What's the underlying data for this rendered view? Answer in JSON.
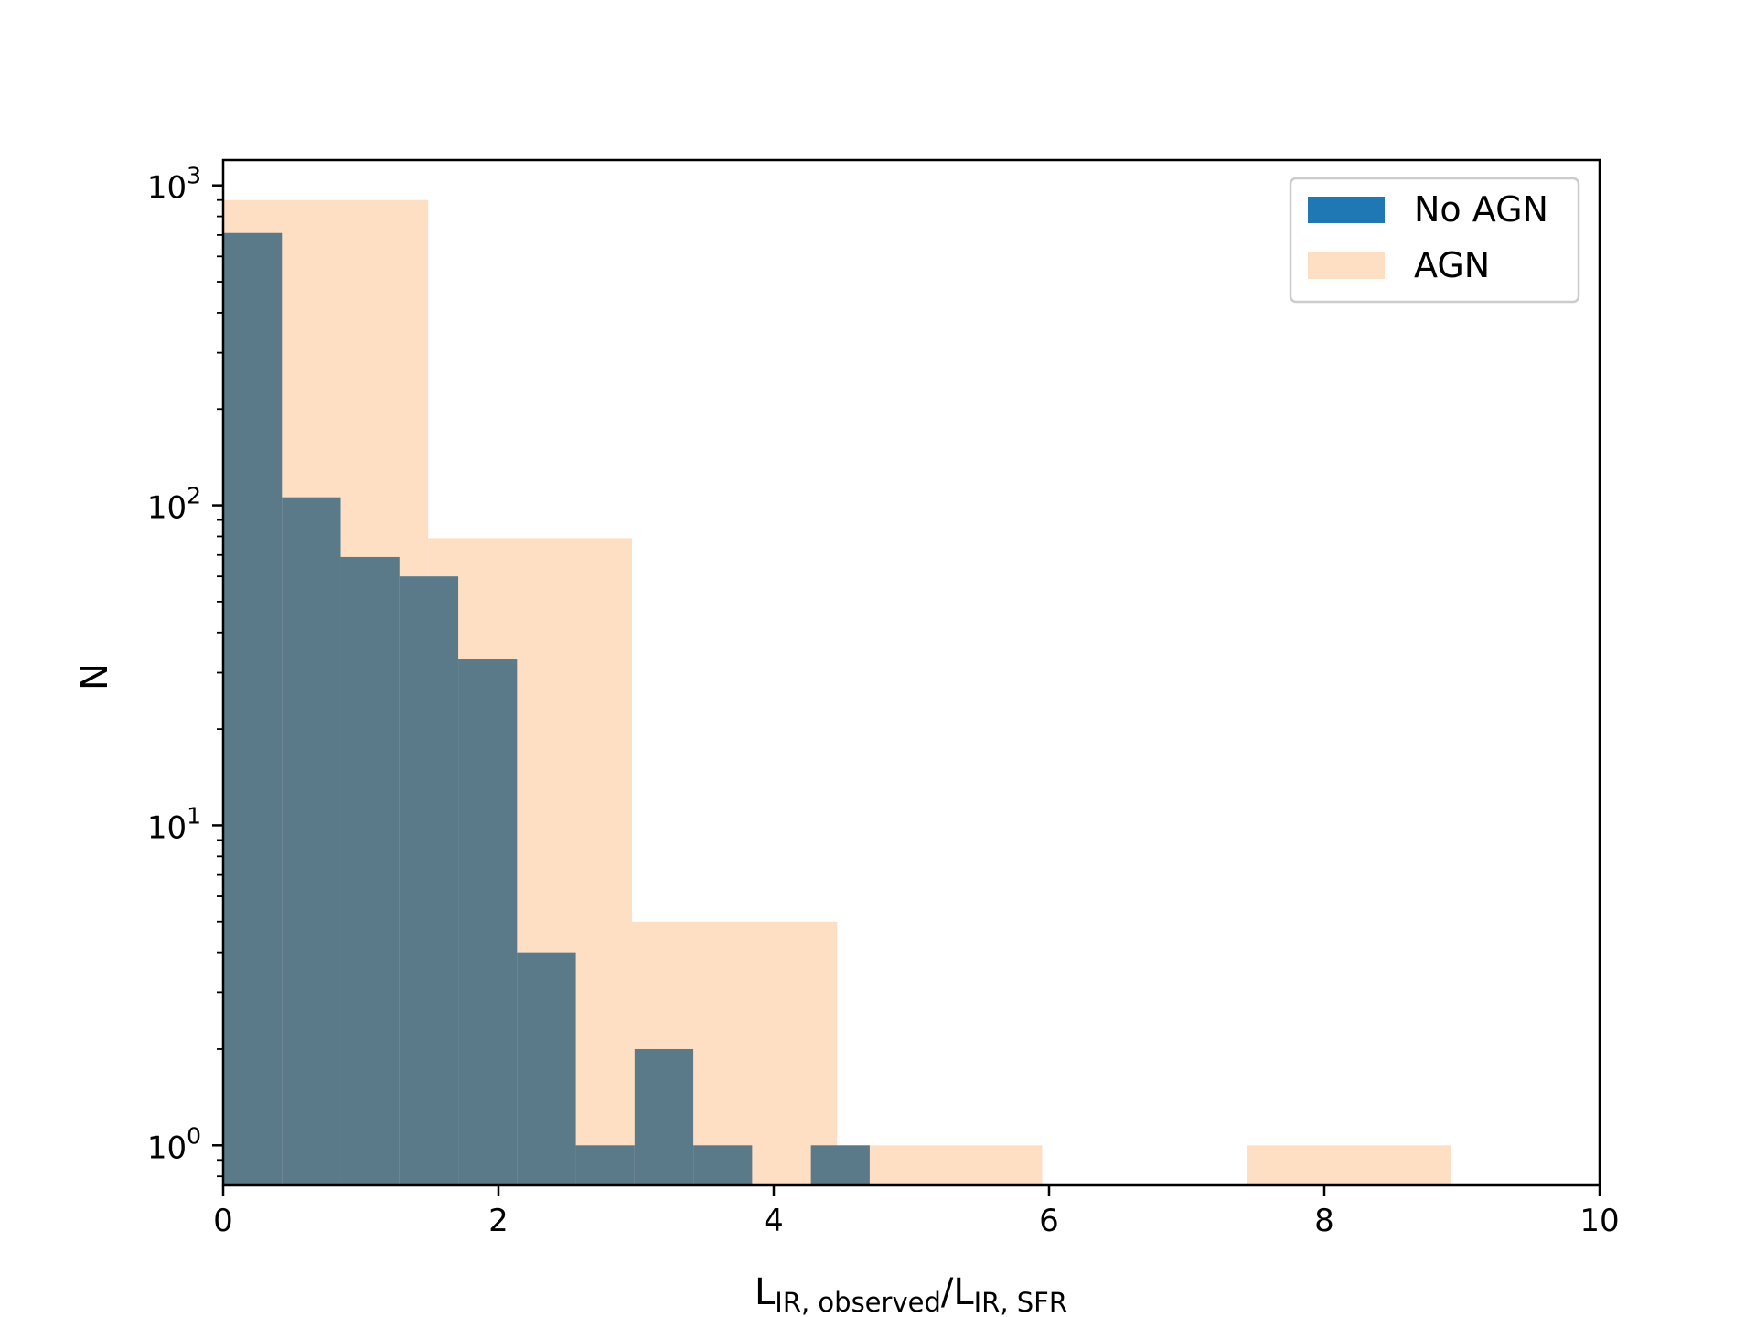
{
  "chart_data": {
    "type": "bar",
    "subtype": "histogram",
    "xlabel": {
      "main": "L",
      "sub1": "IR, observed",
      "slash": "/L",
      "sub2": "IR, SFR"
    },
    "ylabel": "N",
    "xlim": [
      0,
      10
    ],
    "ylim": [
      0.75,
      1200
    ],
    "yscale": "log",
    "grid": false,
    "legend_position": "top-right",
    "x_ticks": [
      "0",
      "2",
      "4",
      "6",
      "8",
      "10"
    ],
    "y_ticks": [
      {
        "base": "10",
        "exp": "0",
        "value": 1
      },
      {
        "base": "10",
        "exp": "1",
        "value": 10
      },
      {
        "base": "10",
        "exp": "2",
        "value": 100
      },
      {
        "base": "10",
        "exp": "3",
        "value": 1000
      }
    ],
    "series": [
      {
        "name": "AGN",
        "color": "#ffdfc4",
        "bins": [
          {
            "x0": 0.0,
            "x1": 1.49,
            "count": 900
          },
          {
            "x0": 1.49,
            "x1": 2.97,
            "count": 79
          },
          {
            "x0": 2.97,
            "x1": 4.46,
            "count": 5
          },
          {
            "x0": 4.46,
            "x1": 5.95,
            "count": 1
          },
          {
            "x0": 5.95,
            "x1": 7.44,
            "count": 0
          },
          {
            "x0": 7.44,
            "x1": 8.92,
            "count": 1
          }
        ]
      },
      {
        "name": "No AGN",
        "color": "#1f77b4",
        "overlap_color": "#5a7a8a",
        "bins": [
          {
            "x0": 0.0,
            "x1": 0.427,
            "count": 710
          },
          {
            "x0": 0.427,
            "x1": 0.854,
            "count": 106
          },
          {
            "x0": 0.854,
            "x1": 1.281,
            "count": 69
          },
          {
            "x0": 1.281,
            "x1": 1.708,
            "count": 60
          },
          {
            "x0": 1.708,
            "x1": 2.135,
            "count": 33
          },
          {
            "x0": 2.135,
            "x1": 2.562,
            "count": 4
          },
          {
            "x0": 2.562,
            "x1": 2.989,
            "count": 1
          },
          {
            "x0": 2.989,
            "x1": 3.416,
            "count": 2
          },
          {
            "x0": 3.416,
            "x1": 3.843,
            "count": 1
          },
          {
            "x0": 3.843,
            "x1": 4.27,
            "count": 0
          },
          {
            "x0": 4.27,
            "x1": 4.697,
            "count": 1
          }
        ]
      }
    ]
  }
}
